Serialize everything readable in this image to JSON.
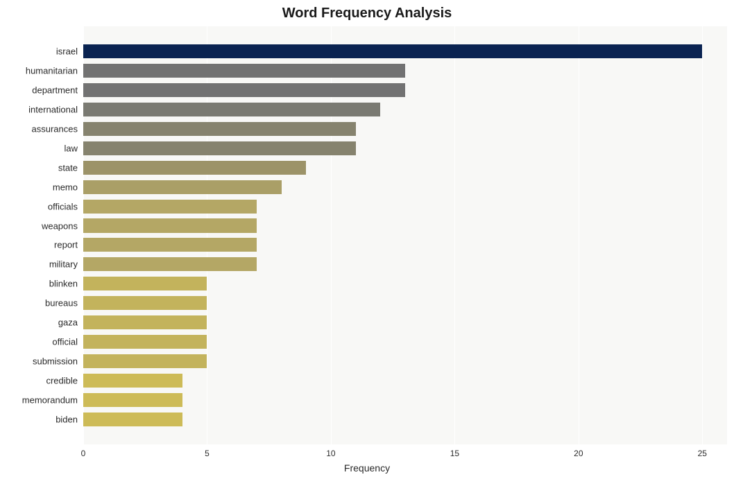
{
  "chart": {
    "type": "bar",
    "orientation": "horizontal",
    "title": "Word Frequency Analysis",
    "title_fontsize": 20,
    "title_fontweight": "bold",
    "xlabel": "Frequency",
    "xlabel_fontsize": 14,
    "ylabel_fontsize": 13,
    "xtick_fontsize": 12,
    "x_ticks": [
      0,
      5,
      10,
      15,
      20,
      25
    ],
    "xlim": [
      0,
      26
    ],
    "background_color": "#ffffff",
    "plot_background": "#f8f8f6",
    "grid_color": "#ffffff",
    "bar_height_ratio": 0.72,
    "words": [
      {
        "label": "israel",
        "value": 25,
        "color": "#0a2351"
      },
      {
        "label": "humanitarian",
        "value": 13,
        "color": "#727272"
      },
      {
        "label": "department",
        "value": 13,
        "color": "#727272"
      },
      {
        "label": "international",
        "value": 12,
        "color": "#7a7a72"
      },
      {
        "label": "assurances",
        "value": 11,
        "color": "#86836e"
      },
      {
        "label": "law",
        "value": 11,
        "color": "#86836e"
      },
      {
        "label": "state",
        "value": 9,
        "color": "#9c9368"
      },
      {
        "label": "memo",
        "value": 8,
        "color": "#aa9f67"
      },
      {
        "label": "officials",
        "value": 7,
        "color": "#b4a765"
      },
      {
        "label": "weapons",
        "value": 7,
        "color": "#b4a765"
      },
      {
        "label": "report",
        "value": 7,
        "color": "#b4a765"
      },
      {
        "label": "military",
        "value": 7,
        "color": "#b4a765"
      },
      {
        "label": "blinken",
        "value": 5,
        "color": "#c3b35c"
      },
      {
        "label": "bureaus",
        "value": 5,
        "color": "#c3b35c"
      },
      {
        "label": "gaza",
        "value": 5,
        "color": "#c3b35c"
      },
      {
        "label": "official",
        "value": 5,
        "color": "#c3b35c"
      },
      {
        "label": "submission",
        "value": 5,
        "color": "#c3b35c"
      },
      {
        "label": "credible",
        "value": 4,
        "color": "#cdbb57"
      },
      {
        "label": "memorandum",
        "value": 4,
        "color": "#cdbb57"
      },
      {
        "label": "biden",
        "value": 4,
        "color": "#cdbb57"
      }
    ]
  }
}
